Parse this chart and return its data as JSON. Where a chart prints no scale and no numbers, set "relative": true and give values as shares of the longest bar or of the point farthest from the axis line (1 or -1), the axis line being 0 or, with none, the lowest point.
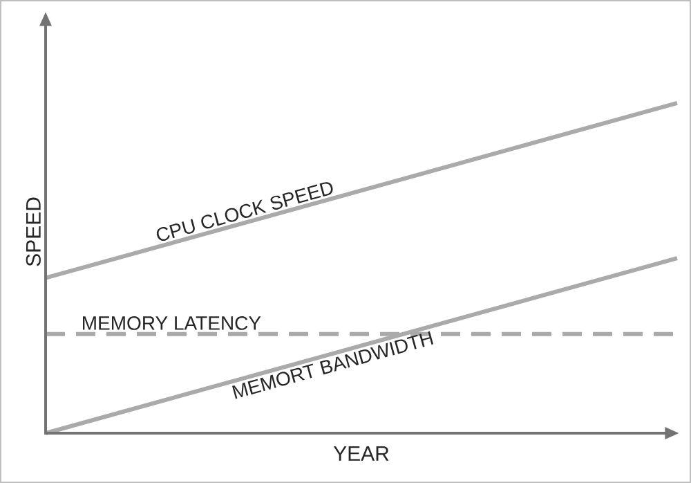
{
  "chart_data": {
    "type": "line",
    "relative": true,
    "xlabel": "YEAR",
    "ylabel": "SPEED",
    "categories": [
      null,
      null
    ],
    "marker": "none",
    "series": [
      {
        "name": "CPU CLOCK SPEED",
        "color": "#aaaaaa",
        "values": [
          0.47,
          1
        ],
        "line_style": "solid"
      },
      {
        "name": "MEMORY LATENCY",
        "color": "#aaaaaa",
        "values": [
          0.3,
          0.3
        ],
        "line_style": "dashed"
      },
      {
        "name": "MEMORT BANDWIDTH",
        "color": "#aaaaaa",
        "values": [
          0,
          0.53
        ],
        "line_style": "solid"
      }
    ]
  }
}
